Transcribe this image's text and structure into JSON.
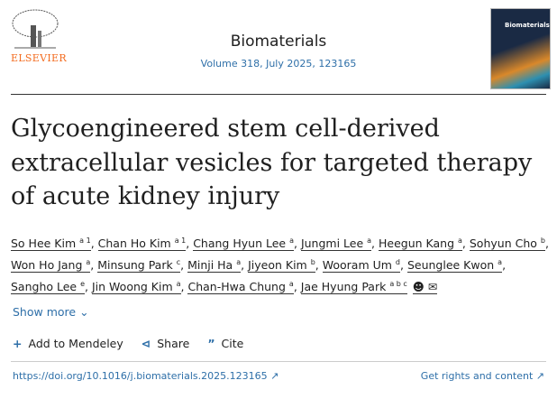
{
  "publisher": {
    "name": "ELSEVIER"
  },
  "journal": {
    "title": "Biomaterials",
    "volume": "Volume 318, July 2025, 123165",
    "cover_title": "Biomaterials"
  },
  "article": {
    "title": "Glycoengineered stem cell-derived extracellular vesicles for targeted therapy of acute kidney injury"
  },
  "authors": [
    {
      "name": "So Hee Kim",
      "sup": "a 1"
    },
    {
      "name": "Chan Ho Kim",
      "sup": "a 1"
    },
    {
      "name": "Chang Hyun Lee",
      "sup": "a"
    },
    {
      "name": "Jungmi Lee",
      "sup": "a"
    },
    {
      "name": "Heegun Kang",
      "sup": "a"
    },
    {
      "name": "Sohyun Cho",
      "sup": "b"
    },
    {
      "name": "Won Ho Jang",
      "sup": "a"
    },
    {
      "name": "Minsung Park",
      "sup": "c"
    },
    {
      "name": "Minji Ha",
      "sup": "a"
    },
    {
      "name": "Jiyeon Kim",
      "sup": "b"
    },
    {
      "name": "Wooram Um",
      "sup": "d"
    },
    {
      "name": "Seunglee Kwon",
      "sup": "a"
    },
    {
      "name": "Sangho Lee",
      "sup": "e"
    },
    {
      "name": "Jin Woong Kim",
      "sup": "a"
    },
    {
      "name": "Chan-Hwa Chung",
      "sup": "a"
    },
    {
      "name": "Jae Hyung Park",
      "sup": "a b c"
    }
  ],
  "icons": {
    "person": "person-icon",
    "email": "envelope-icon"
  },
  "show_more": "Show more",
  "toolbar": {
    "mendeley": "Add to Mendeley",
    "share": "Share",
    "cite": "Cite"
  },
  "doi": "https://doi.org/10.1016/j.biomaterials.2025.123165 ↗",
  "rights": "Get rights and content ↗",
  "colors": {
    "link": "#2e6fa8",
    "elsevier": "#f36d21"
  }
}
